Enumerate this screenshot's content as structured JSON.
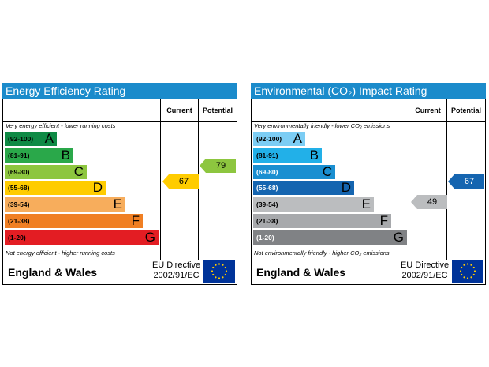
{
  "colors": {
    "header_blue": "#1b8bcb",
    "energy_bands": [
      "#0f8a45",
      "#2aa84a",
      "#8dc63f",
      "#ffcc00",
      "#f7ad5c",
      "#f07f23",
      "#e31d23"
    ],
    "env_bands": [
      "#7ccdf4",
      "#22b0e8",
      "#1a8fd1",
      "#1565b0",
      "#bbbdbf",
      "#a7a9ac",
      "#808285"
    ],
    "eu_flag_blue": "#003399",
    "eu_stars": "#ffcc00"
  },
  "charts": [
    {
      "title": "Energy Efficiency Rating",
      "col_current": "Current",
      "col_potential": "Potential",
      "top_note": "Very energy efficient - lower running costs",
      "bottom_note": "Not energy efficient - higher running costs",
      "footer_region": "England & Wales",
      "directive_line1": "EU Directive",
      "directive_line2": "2002/91/EC",
      "current_value": "67",
      "potential_value": "79"
    },
    {
      "title": "Environmental (CO₂) Impact Rating",
      "col_current": "Current",
      "col_potential": "Potential",
      "top_note": "Very environmentally friendly - lower CO₂ emissions",
      "bottom_note": "Not environmentally friendly - higher CO₂ emissions",
      "footer_region": "England & Wales",
      "directive_line1": "EU Directive",
      "directive_line2": "2002/91/EC",
      "current_value": "49",
      "potential_value": "67"
    }
  ],
  "chart_data": [
    {
      "type": "bar",
      "title": "Energy Efficiency Rating",
      "categories": [
        "(92-100) A",
        "(81-91) B",
        "(69-80) C",
        "(55-68) D",
        "(39-54) E",
        "(21-38) F",
        "(1-20) G"
      ],
      "bands": [
        {
          "range": "(92-100)",
          "letter": "A",
          "min": 92,
          "max": 100
        },
        {
          "range": "(81-91)",
          "letter": "B",
          "min": 81,
          "max": 91
        },
        {
          "range": "(69-80)",
          "letter": "C",
          "min": 69,
          "max": 80
        },
        {
          "range": "(55-68)",
          "letter": "D",
          "min": 55,
          "max": 68
        },
        {
          "range": "(39-54)",
          "letter": "E",
          "min": 39,
          "max": 54
        },
        {
          "range": "(21-38)",
          "letter": "F",
          "min": 21,
          "max": 38
        },
        {
          "range": "(1-20)",
          "letter": "G",
          "min": 1,
          "max": 20
        }
      ],
      "series": [
        {
          "name": "Current",
          "value": 67,
          "band": "D",
          "color": "#ffcc00"
        },
        {
          "name": "Potential",
          "value": 79,
          "band": "C",
          "color": "#8dc63f"
        }
      ]
    },
    {
      "type": "bar",
      "title": "Environmental (CO₂) Impact Rating",
      "categories": [
        "(92-100) A",
        "(81-91) B",
        "(69-80) C",
        "(55-68) D",
        "(39-54) E",
        "(21-38) F",
        "(1-20) G"
      ],
      "bands": [
        {
          "range": "(92-100)",
          "letter": "A",
          "min": 92,
          "max": 100
        },
        {
          "range": "(81-91)",
          "letter": "B",
          "min": 81,
          "max": 91
        },
        {
          "range": "(69-80)",
          "letter": "C",
          "min": 69,
          "max": 80
        },
        {
          "range": "(55-68)",
          "letter": "D",
          "min": 55,
          "max": 68
        },
        {
          "range": "(39-54)",
          "letter": "E",
          "min": 39,
          "max": 54
        },
        {
          "range": "(21-38)",
          "letter": "F",
          "min": 21,
          "max": 38
        },
        {
          "range": "(1-20)",
          "letter": "G",
          "min": 1,
          "max": 20
        }
      ],
      "series": [
        {
          "name": "Current",
          "value": 49,
          "band": "E",
          "color": "#bbbdbf"
        },
        {
          "name": "Potential",
          "value": 67,
          "band": "D",
          "color": "#1565b0"
        }
      ]
    }
  ]
}
